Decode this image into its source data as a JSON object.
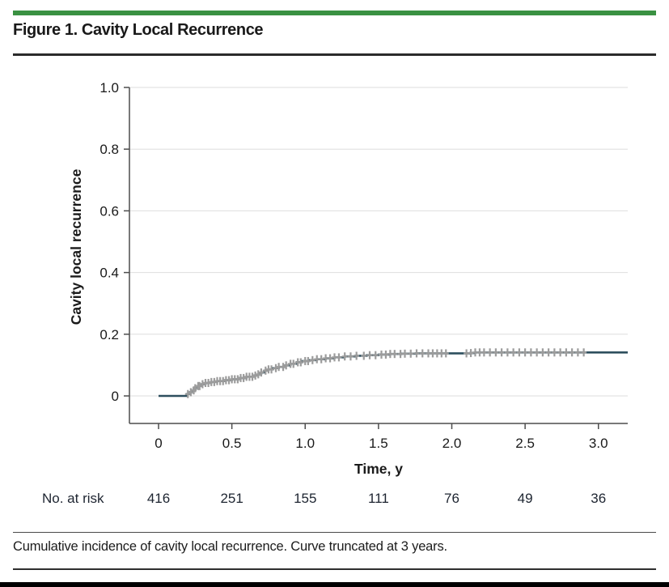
{
  "page": {
    "accent_color": "#3a9142",
    "title": "Figure 1. Cavity Local Recurrence",
    "caption": "Cumulative incidence of cavity local recurrence. Curve truncated at 3 years."
  },
  "chart_data": {
    "type": "line",
    "subtype": "cumulative-incidence-step-curve",
    "title": "",
    "xlabel": "Time, y",
    "ylabel": "Cavity local recurrence",
    "xlim": [
      0,
      3.2
    ],
    "ylim": [
      0,
      1.0
    ],
    "grid": "horizontal",
    "legend_position": "none",
    "curve_color": "#2d4f5e",
    "censor_color": "#9c9c9c",
    "axis_color": "#4d4d4d",
    "grid_color": "#dedede",
    "xticks": [
      0,
      0.5,
      1.0,
      1.5,
      2.0,
      2.5,
      3.0
    ],
    "xtick_labels": [
      "0",
      "0.5",
      "1.0",
      "1.5",
      "2.0",
      "2.5",
      "3.0"
    ],
    "yticks": [
      0,
      0.2,
      0.4,
      0.6,
      0.8,
      1.0
    ],
    "ytick_labels": [
      "0",
      "0.2",
      "0.4",
      "0.6",
      "0.8",
      "1.0"
    ],
    "series": [
      {
        "name": "Cavity local recurrence",
        "step_points": [
          [
            0,
            0
          ],
          [
            0.17,
            0
          ],
          [
            0.19,
            0.006
          ],
          [
            0.21,
            0.012
          ],
          [
            0.23,
            0.018
          ],
          [
            0.25,
            0.025
          ],
          [
            0.27,
            0.032
          ],
          [
            0.29,
            0.038
          ],
          [
            0.32,
            0.042
          ],
          [
            0.36,
            0.045
          ],
          [
            0.4,
            0.048
          ],
          [
            0.45,
            0.051
          ],
          [
            0.5,
            0.054
          ],
          [
            0.55,
            0.058
          ],
          [
            0.6,
            0.062
          ],
          [
            0.65,
            0.066
          ],
          [
            0.68,
            0.07
          ],
          [
            0.7,
            0.076
          ],
          [
            0.72,
            0.082
          ],
          [
            0.75,
            0.086
          ],
          [
            0.78,
            0.09
          ],
          [
            0.82,
            0.094
          ],
          [
            0.86,
            0.099
          ],
          [
            0.9,
            0.104
          ],
          [
            0.94,
            0.109
          ],
          [
            0.98,
            0.113
          ],
          [
            1.03,
            0.116
          ],
          [
            1.08,
            0.119
          ],
          [
            1.14,
            0.122
          ],
          [
            1.2,
            0.125
          ],
          [
            1.27,
            0.128
          ],
          [
            1.34,
            0.13
          ],
          [
            1.42,
            0.132
          ],
          [
            1.5,
            0.134
          ],
          [
            1.58,
            0.136
          ],
          [
            1.66,
            0.137
          ],
          [
            1.75,
            0.138
          ],
          [
            2.12,
            0.139
          ],
          [
            2.16,
            0.141
          ],
          [
            3.2,
            0.141
          ]
        ]
      }
    ],
    "censor_times": [
      0.2,
      0.22,
      0.24,
      0.25,
      0.27,
      0.28,
      0.3,
      0.32,
      0.34,
      0.36,
      0.38,
      0.4,
      0.42,
      0.44,
      0.46,
      0.48,
      0.5,
      0.52,
      0.54,
      0.56,
      0.58,
      0.6,
      0.62,
      0.64,
      0.66,
      0.68,
      0.7,
      0.73,
      0.75,
      0.77,
      0.8,
      0.82,
      0.85,
      0.87,
      0.9,
      0.92,
      0.95,
      0.97,
      1.0,
      1.02,
      1.05,
      1.08,
      1.11,
      1.14,
      1.17,
      1.2,
      1.23,
      1.27,
      1.31,
      1.35,
      1.4,
      1.44,
      1.48,
      1.52,
      1.55,
      1.58,
      1.61,
      1.65,
      1.68,
      1.72,
      1.76,
      1.8,
      1.84,
      1.87,
      1.9,
      1.93,
      1.96,
      2.1,
      2.13,
      2.16,
      2.19,
      2.22,
      2.26,
      2.3,
      2.34,
      2.38,
      2.42,
      2.46,
      2.5,
      2.54,
      2.58,
      2.62,
      2.66,
      2.7,
      2.74,
      2.78,
      2.82,
      2.86,
      2.9
    ],
    "risk_table": {
      "label": "No. at risk",
      "times": [
        0,
        0.5,
        1.0,
        1.5,
        2.0,
        2.5,
        3.0
      ],
      "values": [
        "416",
        "251",
        "155",
        "111",
        "76",
        "49",
        "36"
      ]
    }
  }
}
